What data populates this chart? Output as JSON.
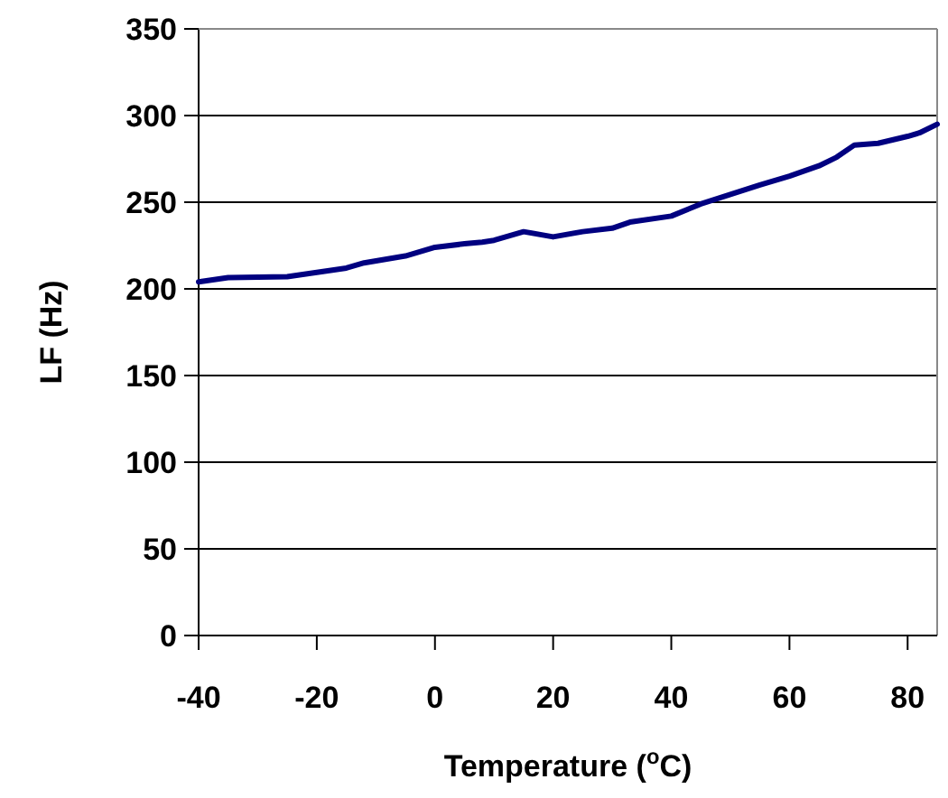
{
  "chart_data": {
    "type": "line",
    "xlabel": "Temperature ($^{o}$C)",
    "ylabel": "LF (Hz)",
    "x": [
      -40,
      -35,
      -25,
      -15,
      -12,
      -5,
      0,
      5,
      8,
      10,
      15,
      20,
      25,
      30,
      33,
      40,
      45,
      50,
      55,
      60,
      65,
      68,
      71,
      75,
      80,
      82,
      85
    ],
    "series": [
      {
        "color": "#000080",
        "values": [
          204,
          206.5,
          207,
          212,
          215,
          219,
          224,
          226,
          227,
          228,
          233,
          230,
          233,
          235,
          238.5,
          242,
          249,
          254.5,
          260,
          265,
          271,
          276,
          283,
          284,
          288,
          290,
          295
        ]
      }
    ],
    "xlim": [
      -40,
      85
    ],
    "xticks": [
      -40,
      -20,
      0,
      20,
      40,
      60,
      80
    ],
    "ylim": [
      0,
      350
    ],
    "yticks": [
      0,
      50,
      100,
      150,
      200,
      250,
      300,
      350
    ],
    "grid": "y",
    "marker": "none",
    "line_style": "solid"
  }
}
